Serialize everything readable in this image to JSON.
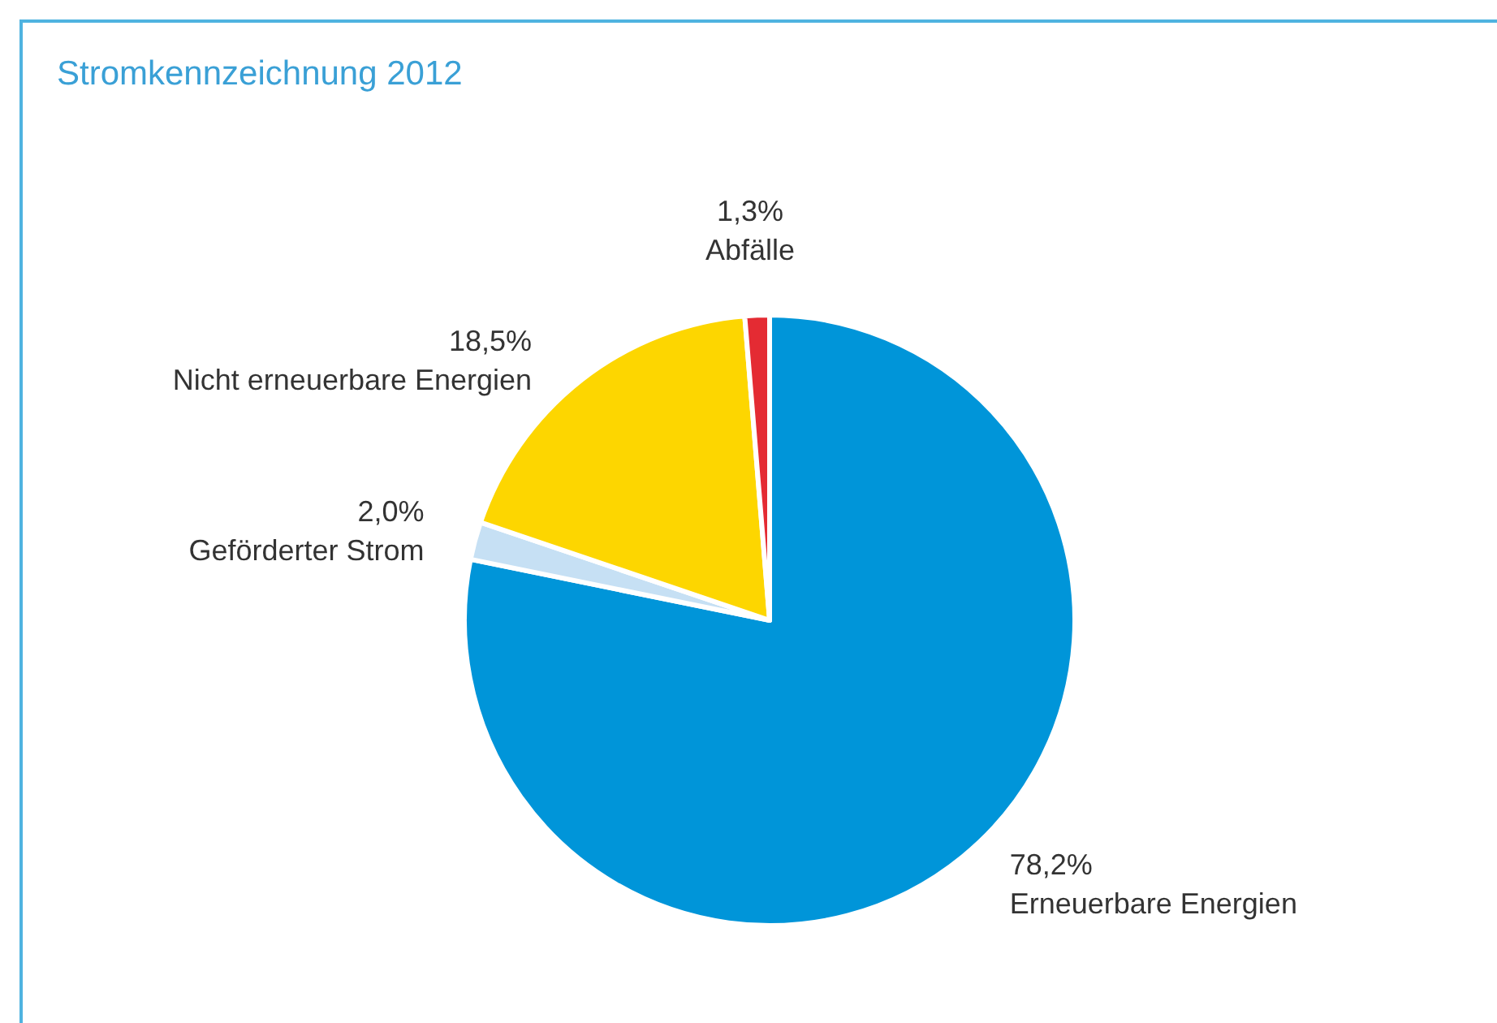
{
  "chart_data": {
    "type": "pie",
    "title": "Stromkennzeichnung 2012",
    "categories": [
      "Erneuerbare Energien",
      "Geförderter Strom",
      "Nicht erneuerbare Energien",
      "Abfälle"
    ],
    "values": [
      78.2,
      2.0,
      18.5,
      1.3
    ],
    "colors": [
      "#0095d9",
      "#c6e0f4",
      "#fdd600",
      "#e42b33"
    ],
    "value_labels": [
      "78,2%",
      "2,0%",
      "18,5%",
      "1,3%"
    ],
    "legend": false
  }
}
